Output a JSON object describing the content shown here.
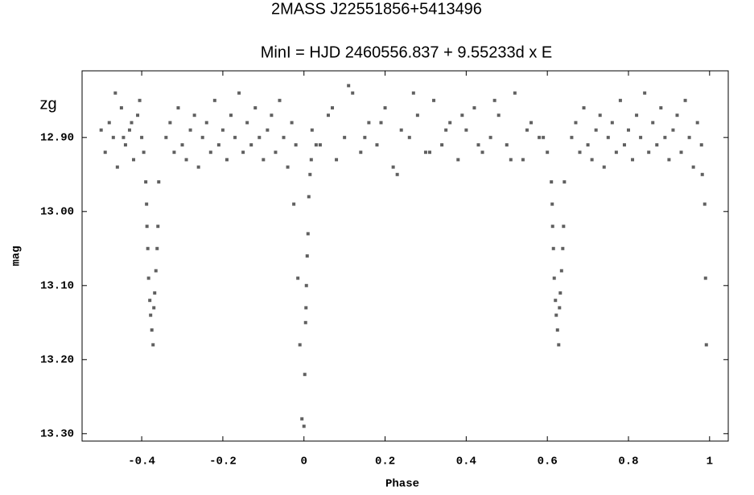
{
  "chart_data": {
    "type": "scatter",
    "title": "2MASS J22551856+5413496",
    "subtitle": "MinI = HJD 2460556.837 + 9.55233d x E",
    "annotation": "zg",
    "x_label": "Phase",
    "y_label": "mag",
    "xlim": [
      -0.547,
      1.046
    ],
    "ylim": [
      12.81,
      13.31
    ],
    "y_inverted": true,
    "xticks": [
      -0.4,
      -0.2,
      0,
      0.2,
      0.4,
      0.6,
      0.8,
      1
    ],
    "yticks": [
      {
        "value": 12.9,
        "label": "12.90"
      },
      {
        "value": 13.0,
        "label": "13.00"
      },
      {
        "value": 13.1,
        "label": "13.10"
      },
      {
        "value": 13.2,
        "label": "13.20"
      },
      {
        "value": 13.3,
        "label": "13.30"
      }
    ],
    "series": [
      {
        "color": "#606060",
        "x": [
          -0.5,
          -0.49,
          -0.48,
          -0.47,
          -0.46,
          -0.45,
          -0.44,
          -0.43,
          -0.42,
          -0.41,
          -0.4,
          -0.395,
          -0.465,
          -0.445,
          -0.425,
          -0.405,
          -0.39,
          -0.388,
          -0.387,
          -0.385,
          -0.383,
          -0.38,
          -0.378,
          -0.375,
          -0.372,
          -0.37,
          -0.368,
          -0.365,
          -0.362,
          -0.36,
          -0.358,
          -0.34,
          -0.33,
          -0.32,
          -0.31,
          -0.3,
          -0.29,
          -0.28,
          -0.27,
          -0.26,
          -0.25,
          -0.24,
          -0.23,
          -0.22,
          -0.21,
          -0.2,
          -0.19,
          -0.18,
          -0.17,
          -0.16,
          -0.15,
          -0.14,
          -0.13,
          -0.12,
          -0.11,
          -0.1,
          -0.09,
          -0.08,
          -0.07,
          -0.06,
          -0.05,
          -0.04,
          -0.03,
          -0.02,
          -0.025,
          -0.015,
          -0.01,
          -0.005,
          0,
          0.002,
          0.004,
          0.005,
          0.006,
          0.008,
          0.01,
          0.012,
          0.015,
          0.018,
          0.02,
          0.04,
          0.06,
          0.08,
          0.1,
          0.12,
          0.14,
          0.16,
          0.18,
          0.2,
          0.22,
          0.24,
          0.26,
          0.28,
          0.3,
          0.32,
          0.34,
          0.36,
          0.38,
          0.4,
          0.42,
          0.44,
          0.46,
          0.48,
          0.5,
          0.52,
          0.54,
          0.56,
          0.58,
          0.6,
          0.03,
          0.07,
          0.11,
          0.15,
          0.19,
          0.23,
          0.27,
          0.31,
          0.35,
          0.39,
          0.43,
          0.47,
          0.51,
          0.55,
          0.59,
          0.61,
          0.612,
          0.613,
          0.615,
          0.617,
          0.62,
          0.622,
          0.625,
          0.628,
          0.63,
          0.632,
          0.635,
          0.638,
          0.64,
          0.642,
          0.66,
          0.67,
          0.68,
          0.69,
          0.7,
          0.71,
          0.72,
          0.73,
          0.74,
          0.75,
          0.76,
          0.77,
          0.78,
          0.79,
          0.8,
          0.81,
          0.82,
          0.83,
          0.84,
          0.85,
          0.86,
          0.87,
          0.88,
          0.89,
          0.9,
          0.91,
          0.92,
          0.93,
          0.94,
          0.95,
          0.96,
          0.97,
          0.98,
          0.982,
          0.988,
          0.99,
          0.992
        ],
        "values": [
          12.89,
          12.92,
          12.88,
          12.9,
          12.94,
          12.86,
          12.91,
          12.89,
          12.93,
          12.87,
          12.9,
          12.92,
          12.84,
          12.9,
          12.88,
          12.85,
          12.96,
          12.99,
          13.02,
          13.05,
          13.09,
          13.12,
          13.14,
          13.16,
          13.18,
          13.13,
          13.11,
          13.08,
          13.05,
          13.02,
          12.96,
          12.9,
          12.88,
          12.92,
          12.86,
          12.91,
          12.93,
          12.89,
          12.87,
          12.94,
          12.9,
          12.88,
          12.92,
          12.85,
          12.91,
          12.89,
          12.93,
          12.87,
          12.9,
          12.84,
          12.92,
          12.88,
          12.91,
          12.86,
          12.9,
          12.93,
          12.89,
          12.87,
          12.92,
          12.85,
          12.9,
          12.94,
          12.88,
          12.91,
          12.99,
          13.09,
          13.18,
          13.28,
          13.29,
          13.22,
          13.15,
          13.13,
          13.1,
          13.06,
          13.03,
          12.98,
          12.95,
          12.93,
          12.89,
          12.91,
          12.87,
          12.93,
          12.9,
          12.84,
          12.92,
          12.88,
          12.91,
          12.86,
          12.94,
          12.89,
          12.9,
          12.87,
          12.92,
          12.85,
          12.91,
          12.88,
          12.93,
          12.89,
          12.86,
          12.92,
          12.9,
          12.87,
          12.91,
          12.84,
          12.93,
          12.88,
          12.9,
          12.92,
          12.91,
          12.86,
          12.83,
          12.9,
          12.88,
          12.95,
          12.84,
          12.92,
          12.89,
          12.87,
          12.91,
          12.85,
          12.93,
          12.89,
          12.9,
          12.96,
          12.99,
          13.02,
          13.05,
          13.09,
          13.12,
          13.14,
          13.16,
          13.18,
          13.13,
          13.11,
          13.08,
          13.05,
          13.02,
          12.96,
          12.9,
          12.88,
          12.92,
          12.86,
          12.91,
          12.93,
          12.89,
          12.87,
          12.94,
          12.9,
          12.88,
          12.92,
          12.85,
          12.91,
          12.89,
          12.93,
          12.87,
          12.9,
          12.84,
          12.92,
          12.88,
          12.91,
          12.86,
          12.9,
          12.93,
          12.89,
          12.87,
          12.92,
          12.85,
          12.9,
          12.94,
          12.88,
          12.91,
          12.95,
          12.99,
          13.09,
          13.18
        ]
      }
    ]
  }
}
